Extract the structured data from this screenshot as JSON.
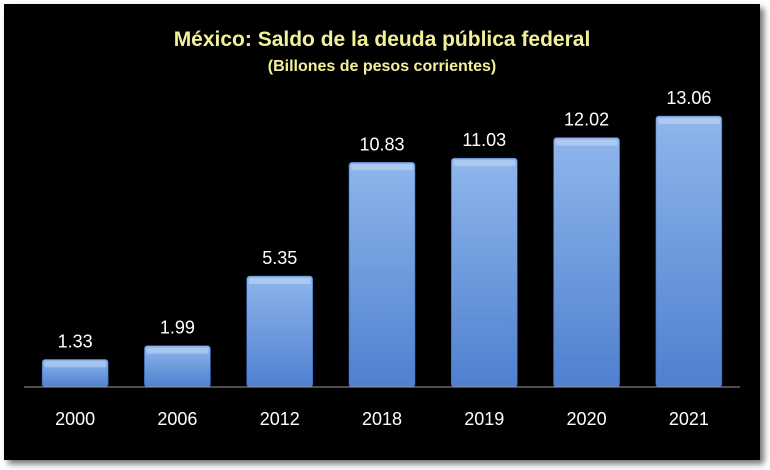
{
  "chart_data": {
    "type": "bar",
    "title": "México: Saldo de la deuda pública federal",
    "subtitle": "(Billones de pesos corrientes)",
    "categories": [
      "2000",
      "2006",
      "2012",
      "2018",
      "2019",
      "2020",
      "2021"
    ],
    "values": [
      1.33,
      1.99,
      5.35,
      10.83,
      11.03,
      12.02,
      13.06
    ],
    "data_labels": [
      "1.33",
      "1.99",
      "5.35",
      "10.83",
      "11.03",
      "12.02",
      "13.06"
    ],
    "xlabel": "",
    "ylabel": "",
    "ylim": [
      0,
      14
    ],
    "grid": false,
    "legend": "none",
    "colors": {
      "background": "#000000",
      "bar_top": "#8fb6ec",
      "bar_bottom": "#4f80cf",
      "title": "#f2f098",
      "text": "#ffffff",
      "axis": "#9a9a9a"
    }
  }
}
